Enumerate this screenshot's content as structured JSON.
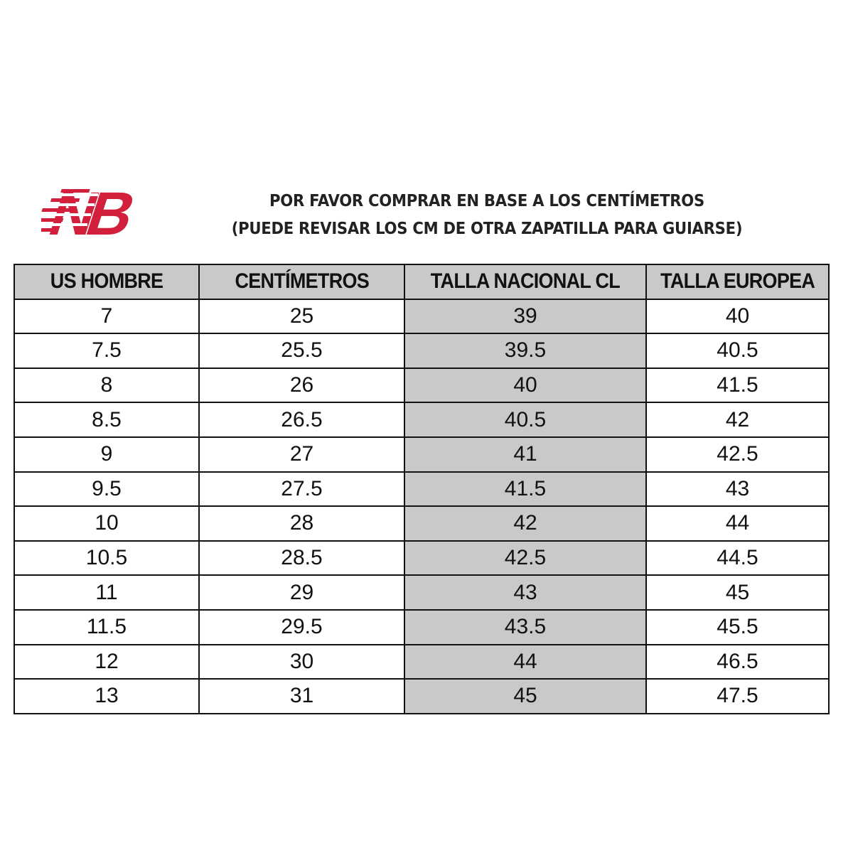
{
  "logo": {
    "text": "NB",
    "color": "#d21f3c"
  },
  "heading": {
    "line1": "POR FAVOR COMPRAR EN BASE A LOS CENTÍMETROS",
    "line2": "(PUEDE REVISAR LOS CM DE OTRA ZAPATILLA PARA GUIARSE)"
  },
  "table": {
    "headers": [
      "US HOMBRE",
      "CENTÍMETROS",
      "TALLA NACIONAL CL",
      "TALLA EUROPEA"
    ],
    "rows": [
      [
        "7",
        "25",
        "39",
        "40"
      ],
      [
        "7.5",
        "25.5",
        "39.5",
        "40.5"
      ],
      [
        "8",
        "26",
        "40",
        "41.5"
      ],
      [
        "8.5",
        "26.5",
        "40.5",
        "42"
      ],
      [
        "9",
        "27",
        "41",
        "42.5"
      ],
      [
        "9.5",
        "27.5",
        "41.5",
        "43"
      ],
      [
        "10",
        "28",
        "42",
        "44"
      ],
      [
        "10.5",
        "28.5",
        "42.5",
        "44.5"
      ],
      [
        "11",
        "29",
        "43",
        "45"
      ],
      [
        "11.5",
        "29.5",
        "43.5",
        "45.5"
      ],
      [
        "12",
        "30",
        "44",
        "46.5"
      ],
      [
        "13",
        "31",
        "45",
        "47.5"
      ]
    ],
    "header_bg": "#c9c9c9",
    "highlight_column_bg": "#c9c9c9"
  }
}
